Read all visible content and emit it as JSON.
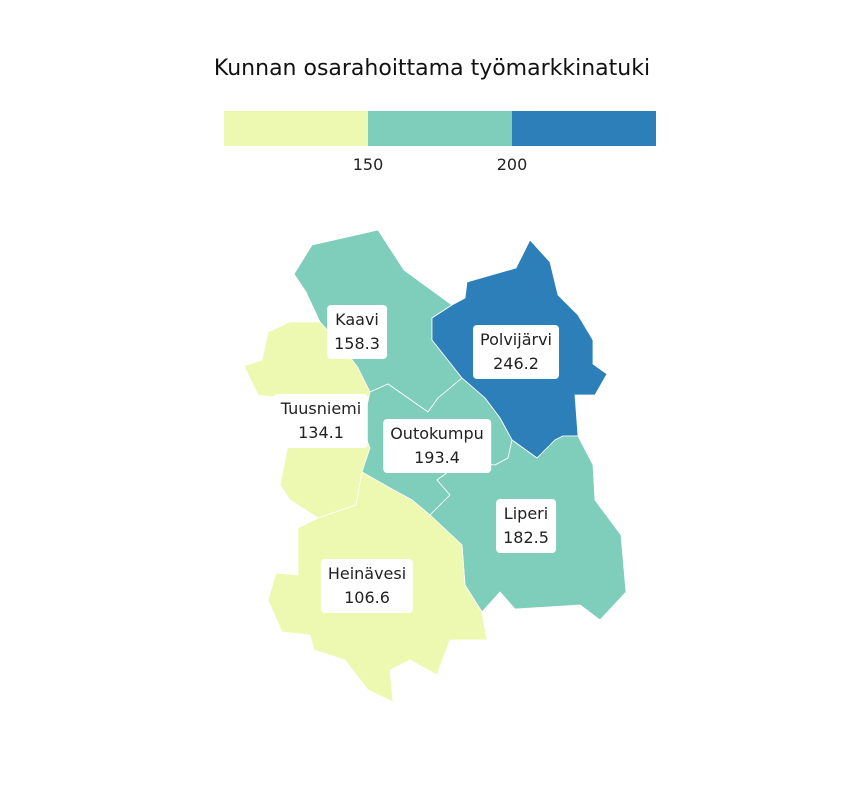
{
  "title": "Kunnan osarahoittama työmarkkinatuki",
  "legend": {
    "bins": [
      {
        "color": "#edf8b1"
      },
      {
        "color": "#7fcdbb"
      },
      {
        "color": "#2c7fb8"
      }
    ],
    "ticks": [
      "150",
      "200"
    ]
  },
  "municipalities": [
    {
      "name": "Kaavi",
      "value": "158.3",
      "color": "#7fcdbb"
    },
    {
      "name": "Polvijärvi",
      "value": "246.2",
      "color": "#2c7fb8"
    },
    {
      "name": "Tuusniemi",
      "value": "134.1",
      "color": "#edf8b1"
    },
    {
      "name": "Outokumpu",
      "value": "193.4",
      "color": "#7fcdbb"
    },
    {
      "name": "Liperi",
      "value": "182.5",
      "color": "#7fcdbb"
    },
    {
      "name": "Heinävesi",
      "value": "106.6",
      "color": "#edf8b1"
    }
  ]
}
